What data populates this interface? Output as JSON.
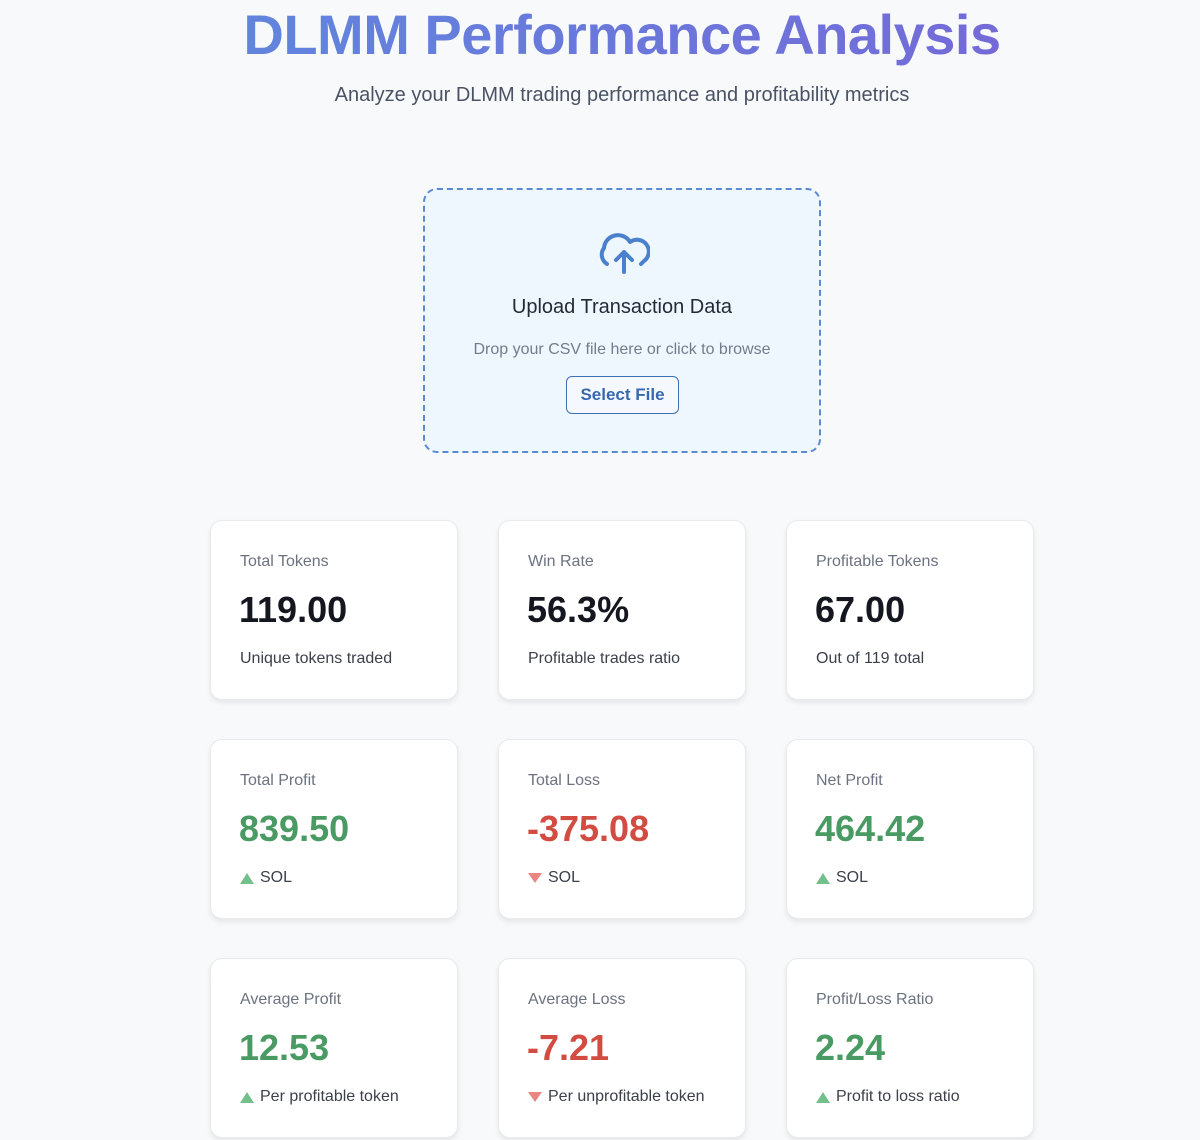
{
  "header": {
    "title": "DLMM Performance Analysis",
    "subtitle": "Analyze your DLMM trading performance and profitability metrics"
  },
  "upload": {
    "icon": "cloud-upload-icon",
    "title": "Upload Transaction Data",
    "hint": "Drop your CSV file here or click to browse",
    "button": "Select File"
  },
  "colors": {
    "positive": "#4a9a63",
    "negative": "#d24c42",
    "accent": "#5a8ad0"
  },
  "metrics": [
    {
      "label": "Total Tokens",
      "value": "119.00",
      "sub": "Unique tokens traded",
      "tone": "neutral"
    },
    {
      "label": "Win Rate",
      "value": "56.3%",
      "sub": "Profitable trades ratio",
      "tone": "neutral"
    },
    {
      "label": "Profitable Tokens",
      "value": "67.00",
      "sub": "Out of 119 total",
      "tone": "neutral"
    },
    {
      "label": "Total Profit",
      "value": "839.50",
      "sub": "SOL",
      "tone": "pos"
    },
    {
      "label": "Total Loss",
      "value": "-375.08",
      "sub": "SOL",
      "tone": "neg"
    },
    {
      "label": "Net Profit",
      "value": "464.42",
      "sub": "SOL",
      "tone": "pos"
    },
    {
      "label": "Average Profit",
      "value": "12.53",
      "sub": "Per profitable token",
      "tone": "pos"
    },
    {
      "label": "Average Loss",
      "value": "-7.21",
      "sub": "Per unprofitable token",
      "tone": "neg"
    },
    {
      "label": "Profit/Loss Ratio",
      "value": "2.24",
      "sub": "Profit to loss ratio",
      "tone": "pos"
    }
  ]
}
